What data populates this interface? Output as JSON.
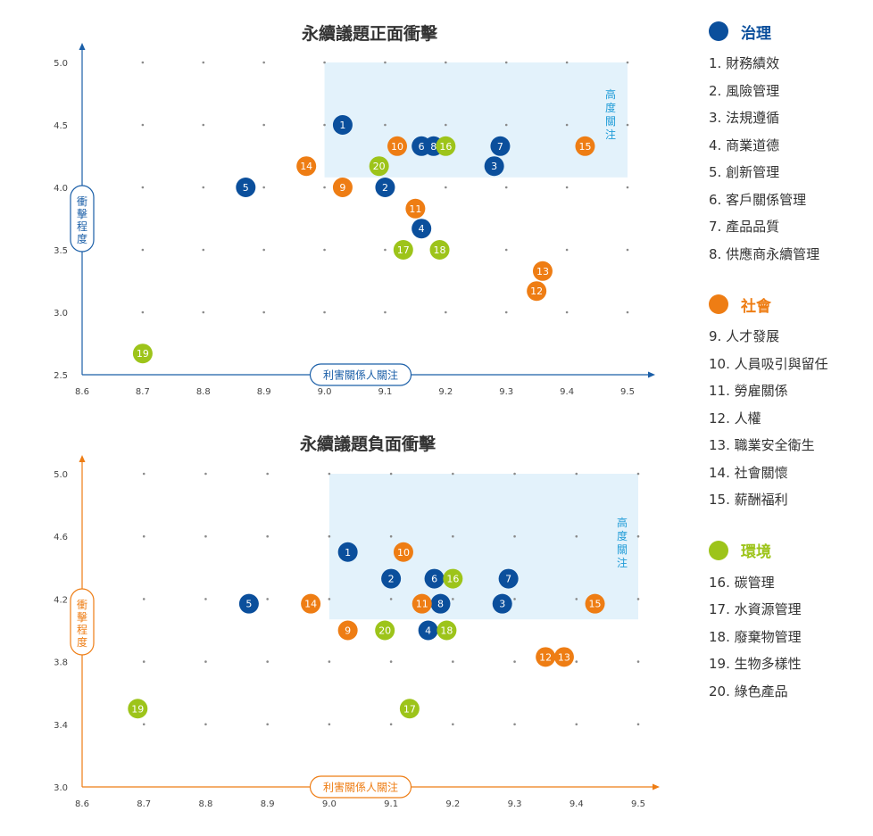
{
  "colors": {
    "governance": "#0b4f9c",
    "social": "#ee7d14",
    "environment": "#9dc41a",
    "positive_axis": "#1b5fa8",
    "negative_axis": "#ee7d14",
    "highlight_fill": "#e3f2fb",
    "highlight_text": "#1e9bd7"
  },
  "legend": [
    {
      "key": "governance",
      "name": "治理",
      "color": "#0b4f9c",
      "items": [
        "1. 財務績效",
        "2. 風險管理",
        "3. 法規遵循",
        "4. 商業道德",
        "5. 創新管理",
        "6. 客戶關係管理",
        "7. 產品品質",
        "8. 供應商永續管理"
      ]
    },
    {
      "key": "social",
      "name": "社會",
      "color": "#ee7d14",
      "items": [
        "9. 人才發展",
        "10. 人員吸引與留任",
        "11. 勞雇關係",
        "12. 人權",
        "13. 職業安全衛生",
        "14. 社會關懷",
        "15. 薪酬福利"
      ]
    },
    {
      "key": "environment",
      "name": "環境",
      "color": "#9dc41a",
      "items": [
        "16. 碳管理",
        "17. 水資源管理",
        "18. 廢棄物管理",
        "19. 生物多樣性",
        "20. 綠色產品"
      ]
    }
  ],
  "chart_data": [
    {
      "type": "scatter",
      "title": "永續議題正面衝擊",
      "xlabel": "利害關係人關注",
      "ylabel": "衝擊程度",
      "highlight_label": "高度關注",
      "xlim": [
        8.6,
        9.5
      ],
      "ylim": [
        2.5,
        5.0
      ],
      "x_ticks": [
        "8.6",
        "8.7",
        "8.8",
        "8.9",
        "9.0",
        "9.1",
        "9.2",
        "9.3",
        "9.4",
        "9.5"
      ],
      "y_ticks": [
        "5.0",
        "4.5",
        "4.0",
        "3.5",
        "3.0",
        "2.5"
      ],
      "highlight_region": {
        "x": [
          9.0,
          9.5
        ],
        "y": [
          4.08,
          5.0
        ]
      },
      "grid": "dotted",
      "points": [
        {
          "id": "1",
          "group": "governance",
          "x": 9.03,
          "y": 4.5
        },
        {
          "id": "2",
          "group": "governance",
          "x": 9.1,
          "y": 4.0
        },
        {
          "id": "3",
          "group": "governance",
          "x": 9.28,
          "y": 4.17
        },
        {
          "id": "4",
          "group": "governance",
          "x": 9.16,
          "y": 3.67
        },
        {
          "id": "5",
          "group": "governance",
          "x": 8.87,
          "y": 4.0
        },
        {
          "id": "6",
          "group": "governance",
          "x": 9.16,
          "y": 4.33
        },
        {
          "id": "7",
          "group": "governance",
          "x": 9.29,
          "y": 4.33
        },
        {
          "id": "8",
          "group": "governance",
          "x": 9.18,
          "y": 4.33
        },
        {
          "id": "9",
          "group": "social",
          "x": 9.03,
          "y": 4.0
        },
        {
          "id": "10",
          "group": "social",
          "x": 9.12,
          "y": 4.33
        },
        {
          "id": "11",
          "group": "social",
          "x": 9.15,
          "y": 3.83
        },
        {
          "id": "12",
          "group": "social",
          "x": 9.35,
          "y": 3.17
        },
        {
          "id": "13",
          "group": "social",
          "x": 9.36,
          "y": 3.33
        },
        {
          "id": "14",
          "group": "social",
          "x": 8.97,
          "y": 4.17
        },
        {
          "id": "15",
          "group": "social",
          "x": 9.43,
          "y": 4.33
        },
        {
          "id": "16",
          "group": "environment",
          "x": 9.2,
          "y": 4.33
        },
        {
          "id": "17",
          "group": "environment",
          "x": 9.13,
          "y": 3.5
        },
        {
          "id": "18",
          "group": "environment",
          "x": 9.19,
          "y": 3.5
        },
        {
          "id": "19",
          "group": "environment",
          "x": 8.7,
          "y": 2.67
        },
        {
          "id": "20",
          "group": "environment",
          "x": 9.09,
          "y": 4.17
        }
      ]
    },
    {
      "type": "scatter",
      "title": "永續議題負面衝擊",
      "xlabel": "利害關係人關注",
      "ylabel": "衝擊程度",
      "highlight_label": "高度關注",
      "xlim": [
        8.6,
        9.5
      ],
      "ylim": [
        3.0,
        5.0
      ],
      "x_ticks": [
        "8.6",
        "8.7",
        "8.8",
        "8.9",
        "9.0",
        "9.1",
        "9.2",
        "9.3",
        "9.4",
        "9.5"
      ],
      "y_ticks": [
        "5.0",
        "4.6",
        "4.2",
        "3.8",
        "3.4",
        "3.0"
      ],
      "highlight_region": {
        "x": [
          9.0,
          9.5
        ],
        "y": [
          4.07,
          5.0
        ]
      },
      "grid": "dotted",
      "points": [
        {
          "id": "1",
          "group": "governance",
          "x": 9.03,
          "y": 4.5
        },
        {
          "id": "2",
          "group": "governance",
          "x": 9.1,
          "y": 4.33
        },
        {
          "id": "3",
          "group": "governance",
          "x": 9.28,
          "y": 4.17
        },
        {
          "id": "4",
          "group": "governance",
          "x": 9.16,
          "y": 4.0
        },
        {
          "id": "5",
          "group": "governance",
          "x": 8.87,
          "y": 4.17
        },
        {
          "id": "6",
          "group": "governance",
          "x": 9.17,
          "y": 4.33
        },
        {
          "id": "7",
          "group": "governance",
          "x": 9.29,
          "y": 4.33
        },
        {
          "id": "8",
          "group": "governance",
          "x": 9.18,
          "y": 4.17
        },
        {
          "id": "9",
          "group": "social",
          "x": 9.03,
          "y": 4.0
        },
        {
          "id": "10",
          "group": "social",
          "x": 9.12,
          "y": 4.5
        },
        {
          "id": "11",
          "group": "social",
          "x": 9.15,
          "y": 4.17
        },
        {
          "id": "12",
          "group": "social",
          "x": 9.35,
          "y": 3.83
        },
        {
          "id": "13",
          "group": "social",
          "x": 9.38,
          "y": 3.83
        },
        {
          "id": "14",
          "group": "social",
          "x": 8.97,
          "y": 4.17
        },
        {
          "id": "15",
          "group": "social",
          "x": 9.43,
          "y": 4.17
        },
        {
          "id": "16",
          "group": "environment",
          "x": 9.2,
          "y": 4.33
        },
        {
          "id": "17",
          "group": "environment",
          "x": 9.13,
          "y": 3.5
        },
        {
          "id": "18",
          "group": "environment",
          "x": 9.19,
          "y": 4.0
        },
        {
          "id": "19",
          "group": "environment",
          "x": 8.69,
          "y": 3.5
        },
        {
          "id": "20",
          "group": "environment",
          "x": 9.09,
          "y": 4.0
        }
      ]
    }
  ]
}
